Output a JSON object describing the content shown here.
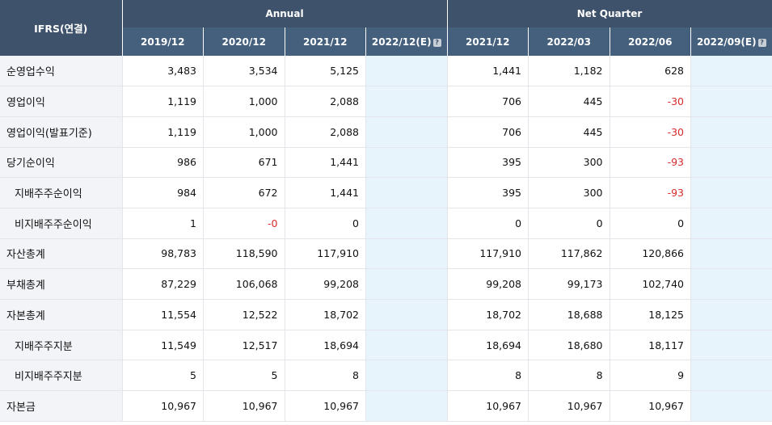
{
  "header": {
    "corner": "IFRS(연결)",
    "group_annual": "Annual",
    "group_quarter": "Net Quarter",
    "columns": [
      "2019/12",
      "2020/12",
      "2021/12",
      "2022/12(E)",
      "2021/12",
      "2022/03",
      "2022/06",
      "2022/09(E)"
    ]
  },
  "rows": [
    {
      "label": "순영업수익",
      "sub": false,
      "values": [
        "3,483",
        "3,534",
        "5,125",
        "",
        "1,441",
        "1,182",
        "628",
        ""
      ]
    },
    {
      "label": "영업이익",
      "sub": false,
      "values": [
        "1,119",
        "1,000",
        "2,088",
        "",
        "706",
        "445",
        "-30",
        ""
      ]
    },
    {
      "label": "영업이익(발표기준)",
      "sub": false,
      "values": [
        "1,119",
        "1,000",
        "2,088",
        "",
        "706",
        "445",
        "-30",
        ""
      ]
    },
    {
      "label": "당기순이익",
      "sub": false,
      "values": [
        "986",
        "671",
        "1,441",
        "",
        "395",
        "300",
        "-93",
        ""
      ]
    },
    {
      "label": "지배주주순이익",
      "sub": true,
      "values": [
        "984",
        "672",
        "1,441",
        "",
        "395",
        "300",
        "-93",
        ""
      ]
    },
    {
      "label": "비지배주주순이익",
      "sub": true,
      "values": [
        "1",
        "-0",
        "0",
        "",
        "0",
        "0",
        "0",
        ""
      ]
    },
    {
      "label": "자산총계",
      "sub": false,
      "values": [
        "98,783",
        "118,590",
        "117,910",
        "",
        "117,910",
        "117,862",
        "120,866",
        ""
      ]
    },
    {
      "label": "부채총계",
      "sub": false,
      "values": [
        "87,229",
        "106,068",
        "99,208",
        "",
        "99,208",
        "99,173",
        "102,740",
        ""
      ]
    },
    {
      "label": "자본총계",
      "sub": false,
      "values": [
        "11,554",
        "12,522",
        "18,702",
        "",
        "18,702",
        "18,688",
        "18,125",
        ""
      ]
    },
    {
      "label": "지배주주지분",
      "sub": true,
      "values": [
        "11,549",
        "12,517",
        "18,694",
        "",
        "18,694",
        "18,680",
        "18,117",
        ""
      ]
    },
    {
      "label": "비지배주주지분",
      "sub": true,
      "values": [
        "5",
        "5",
        "8",
        "",
        "8",
        "8",
        "9",
        ""
      ]
    },
    {
      "label": "자본금",
      "sub": false,
      "values": [
        "10,967",
        "10,967",
        "10,967",
        "",
        "10,967",
        "10,967",
        "10,967",
        ""
      ]
    }
  ],
  "colors": {
    "negative": "#d62b2b",
    "header": "#3e536b",
    "estimate_bg": "#e8f4fb"
  }
}
